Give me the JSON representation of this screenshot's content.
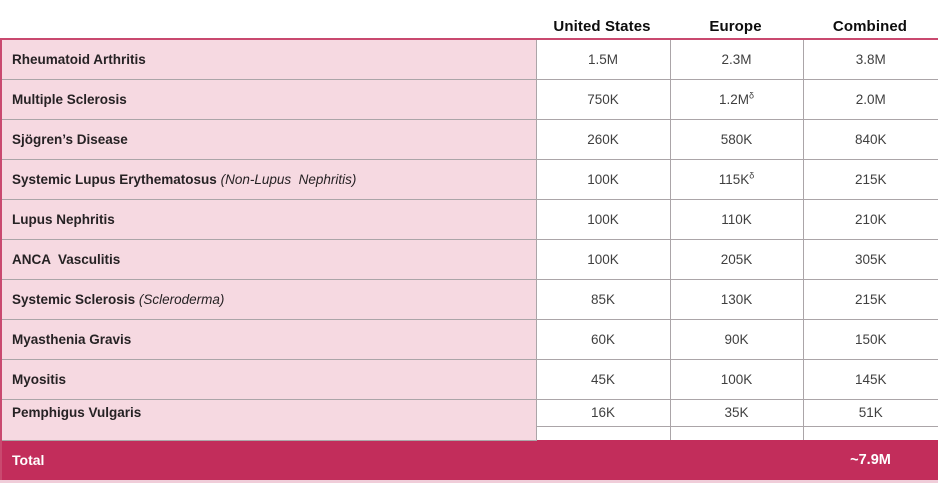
{
  "colors": {
    "row_pink": "#F6D9E1",
    "total_background": "#C22D5B",
    "outer_border": "#C9496F",
    "inner_border": "#ABA5A8",
    "bottom_strip": "#F0CDD9",
    "header_text": "#0d0d0d",
    "body_text": "#3F3F3F",
    "total_text": "#FFFFFF"
  },
  "table": {
    "columns": [
      "United States",
      "Europe",
      "Combined"
    ],
    "rows": [
      {
        "name": "Rheumatoid Arthritis",
        "note": "",
        "us": "1.5M",
        "europe": "2.3M",
        "europe_sup": "",
        "combined": "3.8M"
      },
      {
        "name": "Multiple Sclerosis",
        "note": "",
        "us": "750K",
        "europe": "1.2M",
        "europe_sup": "δ",
        "combined": "2.0M"
      },
      {
        "name": "Sjögren’s Disease",
        "note": "",
        "us": "260K",
        "europe": "580K",
        "europe_sup": "",
        "combined": "840K"
      },
      {
        "name": "Systemic Lupus Erythematosus",
        "note": "(Non-Lupus  Nephritis)",
        "us": "100K",
        "europe": "115K",
        "europe_sup": "δ",
        "combined": "215K"
      },
      {
        "name": "Lupus Nephritis",
        "note": "",
        "us": "100K",
        "europe": "110K",
        "europe_sup": "",
        "combined": "210K"
      },
      {
        "name": "ANCA  Vasculitis",
        "note": "",
        "us": "100K",
        "europe": "205K",
        "europe_sup": "",
        "combined": "305K"
      },
      {
        "name": "Systemic Sclerosis",
        "note": "(Scleroderma)",
        "us": "85K",
        "europe": "130K",
        "europe_sup": "",
        "combined": "215K"
      },
      {
        "name": "Myasthenia Gravis",
        "note": "",
        "us": "60K",
        "europe": "90K",
        "europe_sup": "",
        "combined": "150K"
      },
      {
        "name": "Myositis",
        "note": "",
        "us": "45K",
        "europe": "100K",
        "europe_sup": "",
        "combined": "145K"
      },
      {
        "name": "Pemphigus Vulgaris",
        "note": "",
        "us": "16K",
        "europe": "35K",
        "europe_sup": "",
        "combined": "51K"
      }
    ],
    "total": {
      "label": "Total",
      "us": "",
      "europe": "",
      "combined": "~7.9M"
    }
  }
}
